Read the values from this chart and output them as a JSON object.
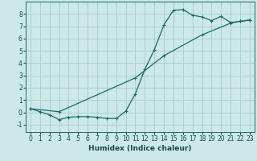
{
  "xlabel": "Humidex (Indice chaleur)",
  "background_color": "#cce8e8",
  "grid_color": "#aacccc",
  "line_color": "#1a6b6b",
  "xlim": [
    -0.5,
    23.5
  ],
  "ylim": [
    -1.6,
    9.0
  ],
  "yticks": [
    -1,
    0,
    1,
    2,
    3,
    4,
    5,
    6,
    7,
    8
  ],
  "xticks": [
    0,
    1,
    2,
    3,
    4,
    5,
    6,
    7,
    8,
    9,
    10,
    11,
    12,
    13,
    14,
    15,
    16,
    17,
    18,
    19,
    20,
    21,
    22,
    23
  ],
  "curve1_x": [
    0,
    1,
    2,
    3,
    4,
    5,
    6,
    7,
    8,
    9,
    10,
    11,
    12,
    13,
    14,
    15,
    16,
    17,
    18,
    19,
    20,
    21,
    22,
    23
  ],
  "curve1_y": [
    0.3,
    0.05,
    -0.2,
    -0.6,
    -0.4,
    -0.35,
    -0.35,
    -0.4,
    -0.5,
    -0.5,
    0.1,
    1.5,
    3.5,
    5.1,
    7.1,
    8.3,
    8.35,
    7.9,
    7.75,
    7.45,
    7.8,
    7.3,
    7.4,
    7.5
  ],
  "curve2_x": [
    0,
    3,
    11,
    14,
    18,
    21,
    22,
    23
  ],
  "curve2_y": [
    0.3,
    0.05,
    2.8,
    4.6,
    6.3,
    7.25,
    7.4,
    7.5
  ],
  "tick_fontsize": 5.5,
  "xlabel_fontsize": 6.5
}
